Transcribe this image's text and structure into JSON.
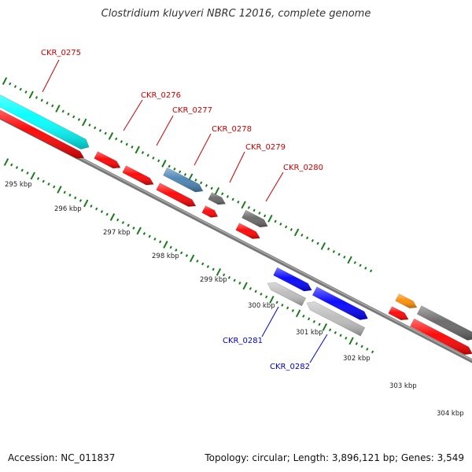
{
  "title": "Clostridium kluyveri NBRC 12016, complete genome",
  "footer": {
    "accession": "Accession: NC_011837",
    "summary": "Topology: circular; Length: 3,896,121 bp; Genes: 3,549"
  },
  "colors": {
    "forward_label": "#cc0000",
    "reverse_label": "#0000cc",
    "ruler_ticks": "#1a7a1a",
    "backbone": "#777777"
  },
  "kbp_labels": [
    "295 kbp",
    "296 kbp",
    "297 kbp",
    "298 kbp",
    "299 kbp",
    "300 kbp",
    "301 kbp",
    "302 kbp",
    "303 kbp",
    "304 kbp"
  ],
  "genes_forward": [
    {
      "name": "CKR_0275",
      "color": "#00ffff"
    },
    {
      "name": "CKR_0276",
      "color": "#ff0000"
    },
    {
      "name": "CKR_0277",
      "color": "#4682b4"
    },
    {
      "name": "CKR_0278",
      "color": "#666666"
    },
    {
      "name": "CKR_0279",
      "color": "#666666"
    },
    {
      "name": "CKR_0280",
      "color": "#ff0000"
    }
  ],
  "genes_reverse": [
    {
      "name": "CKR_0281",
      "color": "#bbbbbb"
    },
    {
      "name": "CKR_0282",
      "color": "#bbbbbb"
    }
  ]
}
